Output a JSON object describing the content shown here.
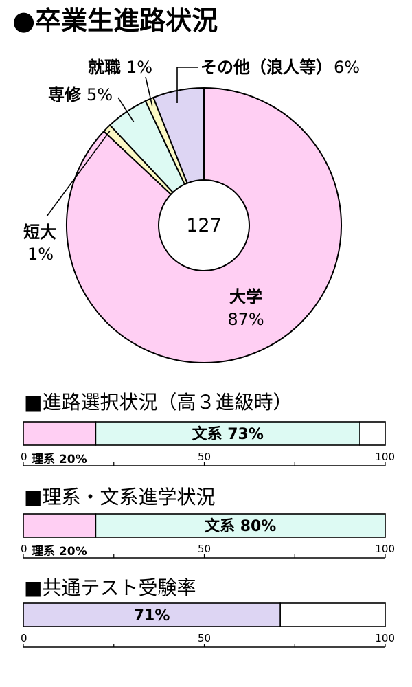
{
  "title": "●卒業生進路状況",
  "colors": {
    "pink": "#ffcff3",
    "mint": "#ddfaf3",
    "yellow": "#fbf8c4",
    "lavender": "#ddd5f3",
    "white": "#ffffff",
    "stroke": "#000000"
  },
  "chart_data": [
    {
      "type": "pie",
      "title": "●卒業生進路状況",
      "center_label": "127",
      "slices": [
        {
          "label": "大学",
          "value": 87,
          "value_label": "87%",
          "color": "#ffcff3"
        },
        {
          "label": "短大",
          "value": 1,
          "value_label": "1%",
          "color": "#fbf8c4"
        },
        {
          "label": "専修",
          "value": 5,
          "value_label": "5%",
          "color": "#ddfaf3"
        },
        {
          "label": "就職",
          "value": 1,
          "value_label": "1%",
          "color": "#fbf8c4"
        },
        {
          "label": "その他（浪人等）",
          "value": 6,
          "value_label": "6%",
          "color": "#ddd5f3"
        }
      ]
    },
    {
      "type": "bar",
      "title": "■進路選択状況（高３進級時）",
      "xlim": [
        0,
        100
      ],
      "ticks": [
        "0",
        "50",
        "100"
      ],
      "segments": [
        {
          "label": "理系 20%",
          "value": 20,
          "color": "#ffcff3",
          "label_position": "below"
        },
        {
          "label": "文系 73%",
          "value": 73,
          "color": "#ddfaf3",
          "label_position": "inside"
        },
        {
          "label": "",
          "value": 7,
          "color": "#ffffff",
          "label_position": "none"
        }
      ]
    },
    {
      "type": "bar",
      "title": "■理系・文系進学状況",
      "xlim": [
        0,
        100
      ],
      "ticks": [
        "0",
        "50",
        "100"
      ],
      "segments": [
        {
          "label": "理系 20%",
          "value": 20,
          "color": "#ffcff3",
          "label_position": "below"
        },
        {
          "label": "文系 80%",
          "value": 80,
          "color": "#ddfaf3",
          "label_position": "inside"
        }
      ]
    },
    {
      "type": "bar",
      "title": "■共通テスト受験率",
      "xlim": [
        0,
        100
      ],
      "ticks": [
        "0",
        "50",
        "100"
      ],
      "segments": [
        {
          "label": "71%",
          "value": 71,
          "color": "#ddd5f3",
          "label_position": "inside"
        },
        {
          "label": "",
          "value": 29,
          "color": "#ffffff",
          "label_position": "none"
        }
      ]
    }
  ]
}
